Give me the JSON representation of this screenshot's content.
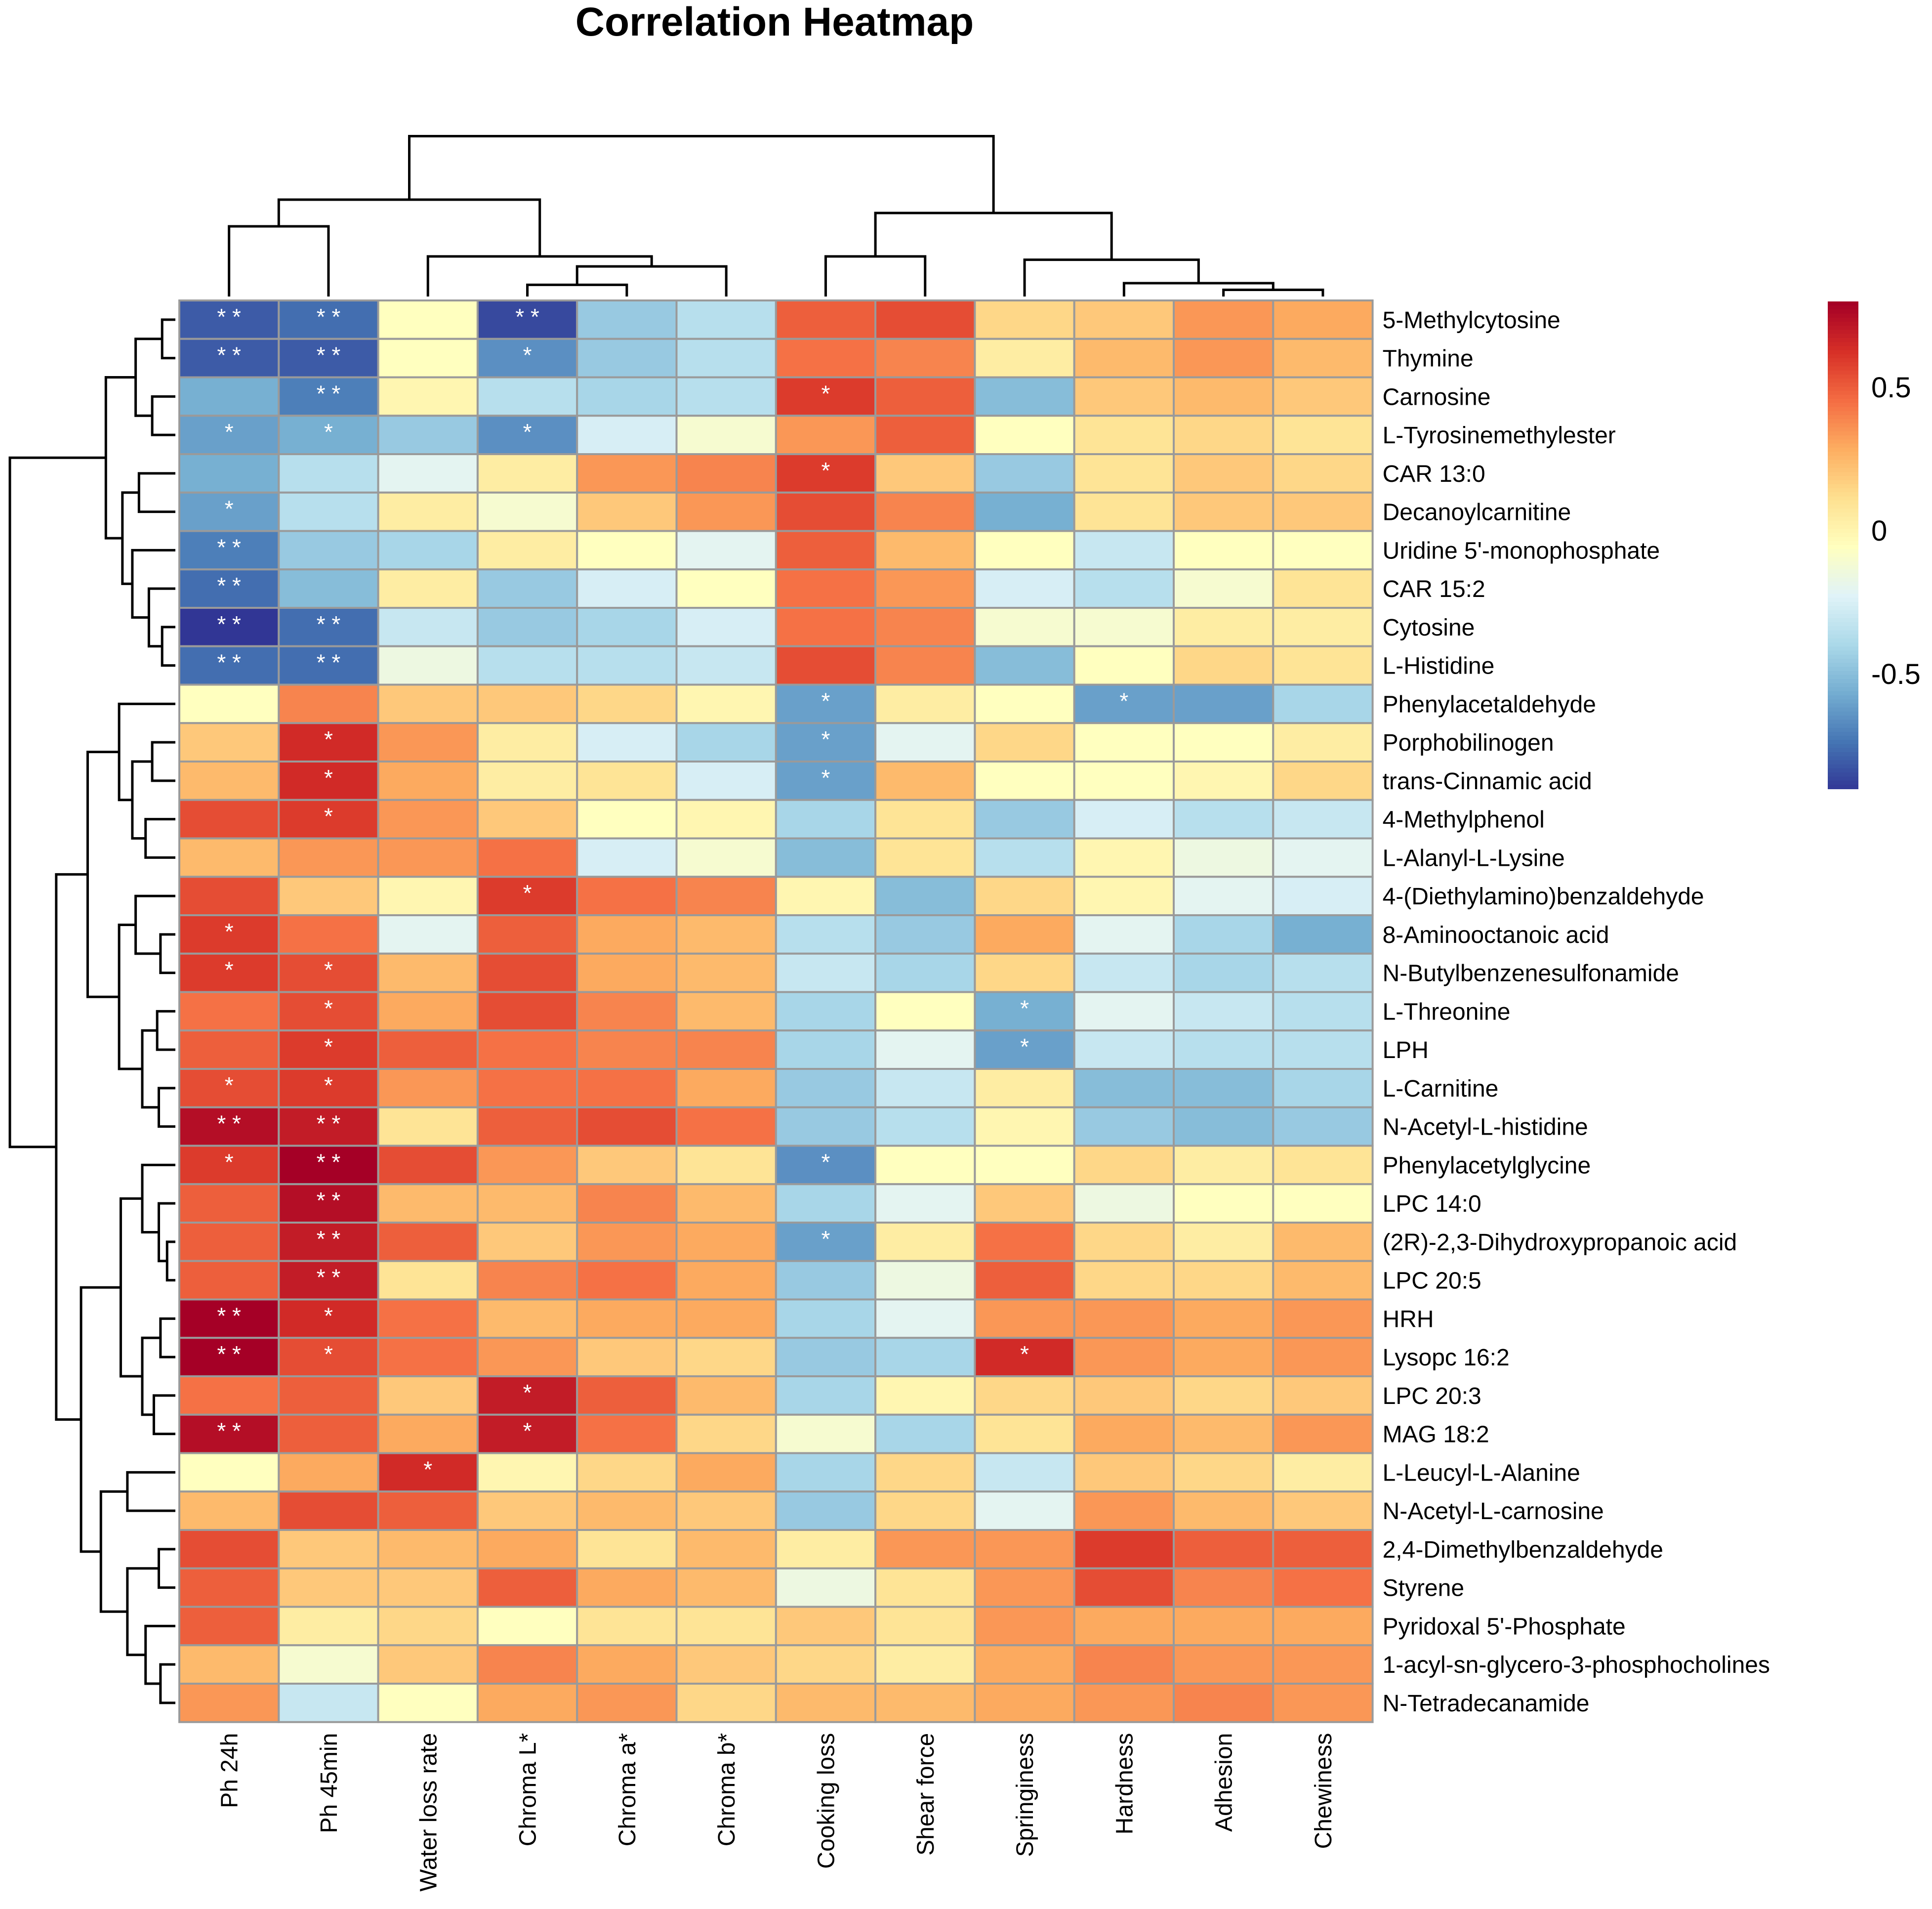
{
  "chart_data": {
    "type": "heatmap",
    "title": "Correlation Heatmap",
    "columns": [
      "Ph 24h",
      "Ph 45min",
      "Water loss rate",
      "Chroma L*",
      "Chroma a*",
      "Chroma b*",
      "Cooking loss",
      "Shear force",
      "Springiness",
      "Hardness",
      "Adhesion",
      "Chewiness"
    ],
    "rows": [
      "5-Methylcytosine",
      "Thymine",
      "Carnosine",
      "L-Tyrosinemethylester",
      "CAR 13:0",
      "Decanoylcarnitine",
      "Uridine 5'-monophosphate",
      "CAR 15:2",
      "Cytosine",
      "L-Histidine",
      "Phenylacetaldehyde",
      "Porphobilinogen",
      "trans-Cinnamic acid",
      "4-Methylphenol",
      "L-Alanyl-L-Lysine",
      "4-(Diethylamino)benzaldehyde",
      "8-Aminooctanoic acid",
      "N-Butylbenzenesulfonamide",
      "L-Threonine",
      "LPH",
      "L-Carnitine",
      "N-Acetyl-L-histidine",
      "Phenylacetylglycine",
      "LPC 14:0",
      "(2R)-2,3-Dihydroxypropanoic acid",
      "LPC 20:5",
      "HRH",
      "Lysopc 16:2",
      "LPC 20:3",
      "MAG 18:2",
      "L-Leucyl-L-Alanine",
      "N-Acetyl-L-carnosine",
      "2,4-Dimethylbenzaldehyde",
      "Styrene",
      "Pyridoxal 5'-Phosphate",
      "1-acyl-sn-glycero-3-phosphocholines",
      "N-Tetradecanamide"
    ],
    "values": [
      [
        -0.8,
        -0.75,
        -0.05,
        -0.85,
        -0.45,
        -0.35,
        0.5,
        0.55,
        0.15,
        0.2,
        0.35,
        0.3
      ],
      [
        -0.8,
        -0.8,
        -0.05,
        -0.65,
        -0.45,
        -0.35,
        0.45,
        0.4,
        0.05,
        0.25,
        0.35,
        0.25
      ],
      [
        -0.55,
        -0.7,
        0.0,
        -0.35,
        -0.4,
        -0.35,
        0.6,
        0.5,
        -0.5,
        0.2,
        0.25,
        0.2
      ],
      [
        -0.6,
        -0.55,
        -0.45,
        -0.65,
        -0.25,
        -0.1,
        0.35,
        0.5,
        -0.05,
        0.1,
        0.15,
        0.1
      ],
      [
        -0.55,
        -0.35,
        -0.2,
        0.05,
        0.35,
        0.4,
        0.6,
        0.2,
        -0.45,
        0.1,
        0.2,
        0.15
      ],
      [
        -0.6,
        -0.35,
        0.05,
        -0.1,
        0.2,
        0.35,
        0.55,
        0.4,
        -0.55,
        0.1,
        0.2,
        0.2
      ],
      [
        -0.7,
        -0.45,
        -0.4,
        0.05,
        -0.05,
        -0.2,
        0.5,
        0.25,
        -0.05,
        -0.3,
        -0.05,
        -0.05
      ],
      [
        -0.75,
        -0.5,
        0.05,
        -0.45,
        -0.25,
        -0.05,
        0.45,
        0.35,
        -0.25,
        -0.35,
        -0.1,
        0.1
      ],
      [
        -0.95,
        -0.75,
        -0.3,
        -0.45,
        -0.4,
        -0.25,
        0.45,
        0.4,
        -0.1,
        -0.1,
        0.05,
        0.05
      ],
      [
        -0.75,
        -0.75,
        -0.15,
        -0.35,
        -0.35,
        -0.3,
        0.55,
        0.4,
        -0.5,
        -0.05,
        0.15,
        0.1
      ],
      [
        -0.05,
        0.4,
        0.2,
        0.2,
        0.15,
        0.0,
        -0.6,
        0.05,
        -0.05,
        -0.6,
        -0.6,
        -0.4
      ],
      [
        0.2,
        0.65,
        0.35,
        0.05,
        -0.25,
        -0.4,
        -0.6,
        -0.2,
        0.15,
        -0.05,
        -0.05,
        0.05
      ],
      [
        0.25,
        0.65,
        0.3,
        0.05,
        0.1,
        -0.25,
        -0.6,
        0.25,
        -0.05,
        -0.05,
        0.0,
        0.15
      ],
      [
        0.55,
        0.6,
        0.35,
        0.2,
        -0.05,
        0.0,
        -0.4,
        0.1,
        -0.45,
        -0.25,
        -0.35,
        -0.3
      ],
      [
        0.25,
        0.35,
        0.35,
        0.45,
        -0.25,
        -0.1,
        -0.5,
        0.1,
        -0.35,
        0.0,
        -0.15,
        -0.2
      ],
      [
        0.55,
        0.2,
        0.0,
        0.6,
        0.45,
        0.4,
        0.0,
        -0.5,
        0.15,
        0.0,
        -0.2,
        -0.25
      ],
      [
        0.6,
        0.45,
        -0.2,
        0.5,
        0.3,
        0.25,
        -0.35,
        -0.45,
        0.3,
        -0.2,
        -0.4,
        -0.55
      ],
      [
        0.6,
        0.55,
        0.25,
        0.55,
        0.3,
        0.25,
        -0.3,
        -0.4,
        0.15,
        -0.3,
        -0.4,
        -0.35
      ],
      [
        0.45,
        0.55,
        0.3,
        0.55,
        0.4,
        0.25,
        -0.4,
        -0.05,
        -0.55,
        -0.2,
        -0.3,
        -0.35
      ],
      [
        0.5,
        0.6,
        0.5,
        0.45,
        0.4,
        0.4,
        -0.4,
        -0.2,
        -0.6,
        -0.3,
        -0.35,
        -0.35
      ],
      [
        0.55,
        0.6,
        0.35,
        0.45,
        0.45,
        0.3,
        -0.45,
        -0.3,
        0.05,
        -0.5,
        -0.5,
        -0.4
      ],
      [
        0.75,
        0.7,
        0.1,
        0.5,
        0.55,
        0.45,
        -0.45,
        -0.35,
        0.0,
        -0.45,
        -0.5,
        -0.45
      ],
      [
        0.6,
        0.85,
        0.55,
        0.35,
        0.2,
        0.1,
        -0.65,
        -0.05,
        -0.05,
        0.15,
        0.05,
        0.1
      ],
      [
        0.5,
        0.75,
        0.25,
        0.25,
        0.4,
        0.25,
        -0.4,
        -0.2,
        0.2,
        -0.15,
        -0.05,
        -0.05
      ],
      [
        0.5,
        0.7,
        0.5,
        0.2,
        0.35,
        0.3,
        -0.6,
        0.05,
        0.45,
        0.15,
        0.05,
        0.25
      ],
      [
        0.5,
        0.7,
        0.1,
        0.4,
        0.45,
        0.3,
        -0.45,
        -0.15,
        0.5,
        0.15,
        0.15,
        0.25
      ],
      [
        0.85,
        0.65,
        0.45,
        0.25,
        0.3,
        0.3,
        -0.4,
        -0.2,
        0.35,
        0.35,
        0.3,
        0.35
      ],
      [
        0.8,
        0.55,
        0.45,
        0.35,
        0.2,
        0.15,
        -0.45,
        -0.4,
        0.65,
        0.35,
        0.3,
        0.35
      ],
      [
        0.45,
        0.5,
        0.2,
        0.7,
        0.5,
        0.25,
        -0.4,
        0.0,
        0.15,
        0.2,
        0.15,
        0.2
      ],
      [
        0.75,
        0.5,
        0.3,
        0.7,
        0.45,
        0.15,
        -0.1,
        -0.4,
        0.1,
        0.3,
        0.25,
        0.35
      ],
      [
        -0.05,
        0.3,
        0.65,
        0.0,
        0.15,
        0.3,
        -0.4,
        0.15,
        -0.3,
        0.2,
        0.15,
        0.05
      ],
      [
        0.25,
        0.55,
        0.5,
        0.2,
        0.25,
        0.2,
        -0.45,
        0.15,
        -0.2,
        0.35,
        0.25,
        0.2
      ],
      [
        0.55,
        0.2,
        0.25,
        0.3,
        0.1,
        0.25,
        0.05,
        0.35,
        0.35,
        0.6,
        0.5,
        0.5
      ],
      [
        0.5,
        0.2,
        0.2,
        0.5,
        0.3,
        0.25,
        -0.15,
        0.1,
        0.35,
        0.55,
        0.4,
        0.45
      ],
      [
        0.5,
        0.05,
        0.15,
        -0.05,
        0.1,
        0.1,
        0.2,
        0.1,
        0.35,
        0.3,
        0.3,
        0.3
      ],
      [
        0.25,
        -0.1,
        0.2,
        0.4,
        0.3,
        0.2,
        0.15,
        0.05,
        0.3,
        0.4,
        0.35,
        0.35
      ],
      [
        0.35,
        -0.3,
        -0.05,
        0.3,
        0.35,
        0.15,
        0.25,
        0.25,
        0.3,
        0.35,
        0.4,
        0.35
      ]
    ],
    "significance": [
      [
        "**",
        "**",
        "",
        "**",
        "",
        "",
        "",
        "",
        "",
        "",
        "",
        ""
      ],
      [
        "**",
        "**",
        "",
        "*",
        "",
        "",
        "",
        "",
        "",
        "",
        "",
        ""
      ],
      [
        "",
        "**",
        "",
        "",
        "",
        "",
        "*",
        "",
        "",
        "",
        "",
        ""
      ],
      [
        "*",
        "*",
        "",
        "*",
        "",
        "",
        "",
        "",
        "",
        "",
        "",
        ""
      ],
      [
        "",
        "",
        "",
        "",
        "",
        "",
        "*",
        "",
        "",
        "",
        "",
        ""
      ],
      [
        "*",
        "",
        "",
        "",
        "",
        "",
        "",
        "",
        "",
        "",
        "",
        ""
      ],
      [
        "**",
        "",
        "",
        "",
        "",
        "",
        "",
        "",
        "",
        "",
        "",
        ""
      ],
      [
        "**",
        "",
        "",
        "",
        "",
        "",
        "",
        "",
        "",
        "",
        "",
        ""
      ],
      [
        "**",
        "**",
        "",
        "",
        "",
        "",
        "",
        "",
        "",
        "",
        "",
        ""
      ],
      [
        "**",
        "**",
        "",
        "",
        "",
        "",
        "",
        "",
        "",
        "",
        "",
        ""
      ],
      [
        "",
        "",
        "",
        "",
        "",
        "",
        "*",
        "",
        "",
        "*",
        "",
        ""
      ],
      [
        "",
        "*",
        "",
        "",
        "",
        "",
        "*",
        "",
        "",
        "",
        "",
        ""
      ],
      [
        "",
        "*",
        "",
        "",
        "",
        "",
        "*",
        "",
        "",
        "",
        "",
        ""
      ],
      [
        "",
        "*",
        "",
        "",
        "",
        "",
        "",
        "",
        "",
        "",
        "",
        ""
      ],
      [
        "",
        "",
        "",
        "",
        "",
        "",
        "",
        "",
        "",
        "",
        "",
        ""
      ],
      [
        "",
        "",
        "",
        "*",
        "",
        "",
        "",
        "",
        "",
        "",
        "",
        ""
      ],
      [
        "*",
        "",
        "",
        "",
        "",
        "",
        "",
        "",
        "",
        "",
        "",
        ""
      ],
      [
        "*",
        "*",
        "",
        "",
        "",
        "",
        "",
        "",
        "",
        "",
        "",
        ""
      ],
      [
        "",
        "*",
        "",
        "",
        "",
        "",
        "",
        "",
        "*",
        "",
        "",
        ""
      ],
      [
        "",
        "*",
        "",
        "",
        "",
        "",
        "",
        "",
        "*",
        "",
        "",
        ""
      ],
      [
        "*",
        "*",
        "",
        "",
        "",
        "",
        "",
        "",
        "",
        "",
        "",
        ""
      ],
      [
        "**",
        "**",
        "",
        "",
        "",
        "",
        "",
        "",
        "",
        "",
        "",
        ""
      ],
      [
        "*",
        "**",
        "",
        "",
        "",
        "",
        "*",
        "",
        "",
        "",
        "",
        ""
      ],
      [
        "",
        "**",
        "",
        "",
        "",
        "",
        "",
        "",
        "",
        "",
        "",
        ""
      ],
      [
        "",
        "**",
        "",
        "",
        "",
        "",
        "*",
        "",
        "",
        "",
        "",
        ""
      ],
      [
        "",
        "**",
        "",
        "",
        "",
        "",
        "",
        "",
        "",
        "",
        "",
        ""
      ],
      [
        "**",
        "*",
        "",
        "",
        "",
        "",
        "",
        "",
        "",
        "",
        "",
        ""
      ],
      [
        "**",
        "*",
        "",
        "",
        "",
        "",
        "",
        "",
        "*",
        "",
        "",
        ""
      ],
      [
        "",
        "",
        "",
        "*",
        "",
        "",
        "",
        "",
        "",
        "",
        "",
        ""
      ],
      [
        "**",
        "",
        "",
        "*",
        "",
        "",
        "",
        "",
        "",
        "",
        "",
        ""
      ],
      [
        "",
        "",
        "*",
        "",
        "",
        "",
        "",
        "",
        "",
        "",
        "",
        ""
      ],
      [
        "",
        "",
        "",
        "",
        "",
        "",
        "",
        "",
        "",
        "",
        "",
        ""
      ],
      [
        "",
        "",
        "",
        "",
        "",
        "",
        "",
        "",
        "",
        "",
        "",
        ""
      ],
      [
        "",
        "",
        "",
        "",
        "",
        "",
        "",
        "",
        "",
        "",
        "",
        ""
      ],
      [
        "",
        "",
        "",
        "",
        "",
        "",
        "",
        "",
        "",
        "",
        "",
        ""
      ],
      [
        "",
        "",
        "",
        "",
        "",
        "",
        "",
        "",
        "",
        "",
        "",
        ""
      ],
      [
        "",
        "",
        "",
        "",
        "",
        "",
        "",
        "",
        "",
        "",
        "",
        ""
      ]
    ],
    "color_scale": {
      "range": [
        -0.9,
        0.8
      ],
      "ticks": [
        0.5,
        0,
        -0.5
      ],
      "tick_labels": [
        "0.5",
        "0",
        "-0.5"
      ],
      "colors": [
        "#313695",
        "#4575b4",
        "#74add1",
        "#abd9e9",
        "#e0f3f8",
        "#ffffbf",
        "#fee090",
        "#fdae61",
        "#f46d43",
        "#d73027",
        "#a50026"
      ]
    },
    "col_dendrogram": [
      [
        0,
        1,
        0.42
      ],
      [
        3,
        4,
        0.07
      ],
      [
        4,
        5,
        0.18
      ],
      [
        2,
        3,
        0.24
      ],
      [
        0,
        2,
        0.58
      ],
      [
        10,
        11,
        0.04
      ],
      [
        9,
        10,
        0.08
      ],
      [
        8,
        9,
        0.22
      ],
      [
        6,
        7,
        0.24
      ],
      [
        6,
        8,
        0.5
      ],
      [
        0,
        6,
        0.96
      ]
    ],
    "row_dendrogram": [
      [
        0,
        1,
        0.08
      ],
      [
        2,
        3,
        0.14
      ],
      [
        0,
        2,
        0.24
      ],
      [
        8,
        9,
        0.08
      ],
      [
        7,
        8,
        0.16
      ],
      [
        6,
        7,
        0.26
      ],
      [
        4,
        5,
        0.22
      ],
      [
        4,
        6,
        0.32
      ],
      [
        0,
        4,
        0.42
      ],
      [
        11,
        12,
        0.14
      ],
      [
        13,
        14,
        0.18
      ],
      [
        11,
        13,
        0.26
      ],
      [
        10,
        11,
        0.34
      ],
      [
        16,
        17,
        0.09
      ],
      [
        15,
        16,
        0.24
      ],
      [
        18,
        19,
        0.11
      ],
      [
        20,
        21,
        0.1
      ],
      [
        18,
        20,
        0.2
      ],
      [
        15,
        18,
        0.34
      ],
      [
        10,
        15,
        0.53
      ],
      [
        24,
        25,
        0.05
      ],
      [
        23,
        24,
        0.1
      ],
      [
        22,
        23,
        0.2
      ],
      [
        26,
        27,
        0.09
      ],
      [
        28,
        29,
        0.13
      ],
      [
        26,
        28,
        0.2
      ],
      [
        22,
        26,
        0.33
      ],
      [
        30,
        31,
        0.29
      ],
      [
        32,
        33,
        0.1
      ],
      [
        35,
        36,
        0.09
      ],
      [
        34,
        35,
        0.18
      ],
      [
        32,
        34,
        0.29
      ],
      [
        30,
        32,
        0.45
      ],
      [
        22,
        30,
        0.57
      ],
      [
        10,
        22,
        0.72
      ],
      [
        0,
        10,
        1.0
      ]
    ]
  }
}
